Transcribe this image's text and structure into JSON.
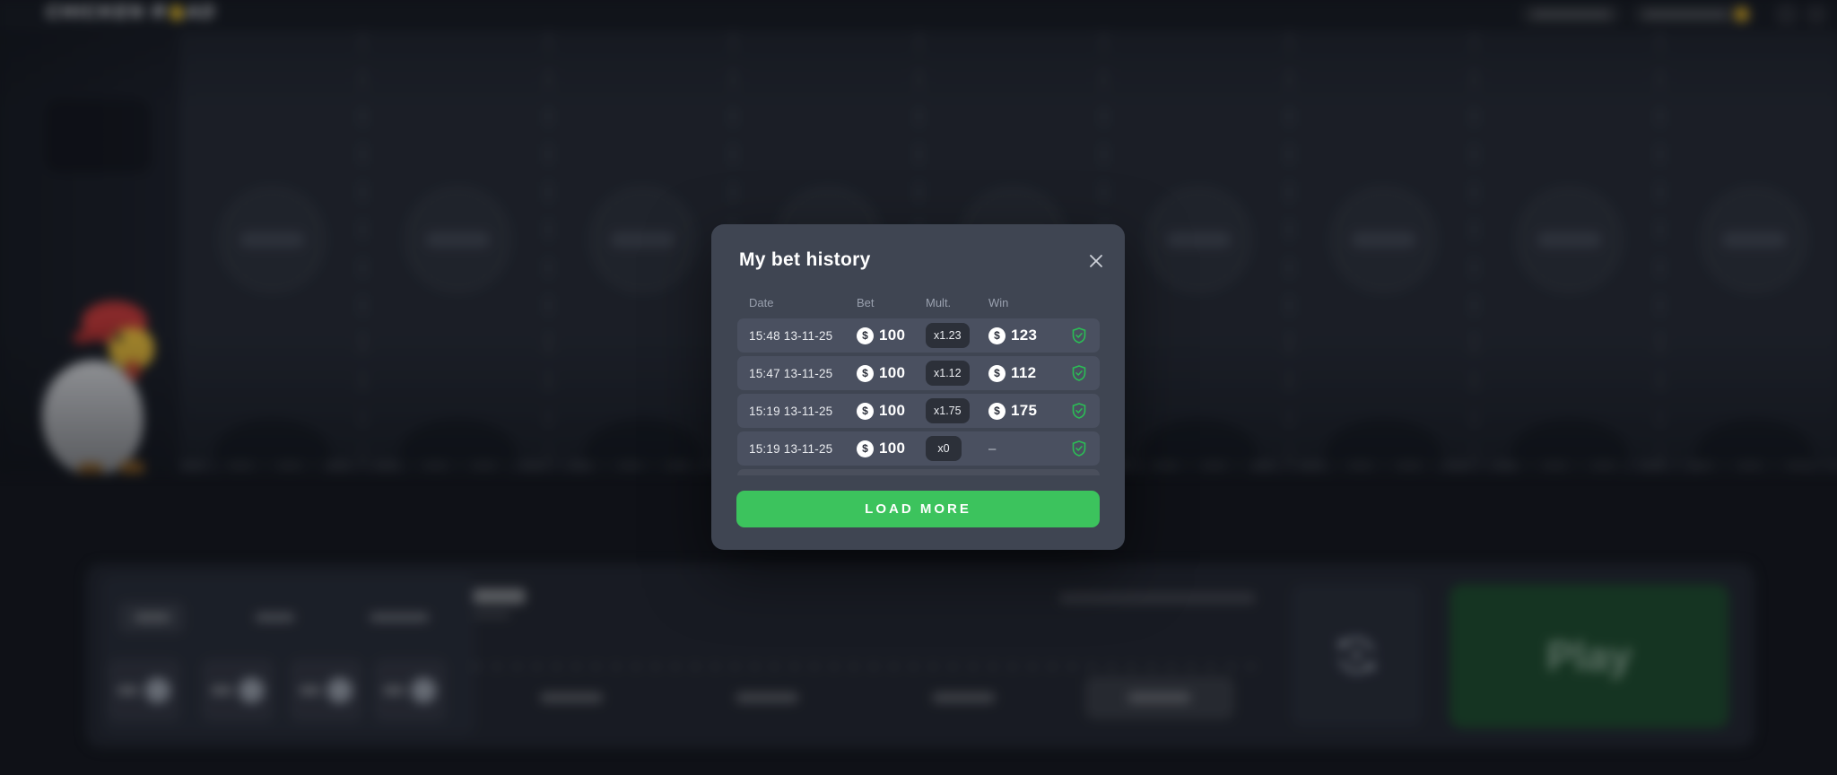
{
  "app": {
    "logo_left": "CHICKEN R",
    "logo_right": "AD",
    "logo_full": "CHICKEN ROAD"
  },
  "modal": {
    "title": "My bet history",
    "table": {
      "headers": {
        "date": "Date",
        "bet": "Bet",
        "mult": "Mult.",
        "win": "Win"
      },
      "currency_symbol": "$",
      "rows": [
        {
          "date": "15:48 13-11-25",
          "bet": "100",
          "mult": "x1.23",
          "win": "123",
          "verified": true
        },
        {
          "date": "15:47 13-11-25",
          "bet": "100",
          "mult": "x1.12",
          "win": "112",
          "verified": true
        },
        {
          "date": "15:19 13-11-25",
          "bet": "100",
          "mult": "x1.75",
          "win": "175",
          "verified": true
        },
        {
          "date": "15:19 13-11-25",
          "bet": "100",
          "mult": "x0",
          "win": "–",
          "verified": true
        }
      ]
    },
    "load_more_label": "LOAD MORE"
  },
  "controls": {
    "play_label": "Play"
  },
  "colors": {
    "accent_green": "#3cc35d",
    "shield_green": "#2bbd55",
    "modal_bg": "#3f4552",
    "row_bg": "#4a5060",
    "egg_yellow": "#ecc22b",
    "play_bg": "#1e4b2e"
  }
}
